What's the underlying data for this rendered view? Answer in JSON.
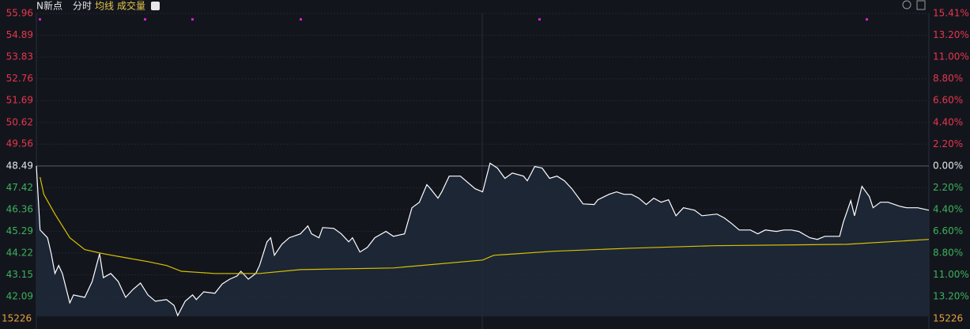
{
  "header": {
    "name": "N新点",
    "mode": "分时",
    "avg_toggle": "均线",
    "volume_toggle": "成交量"
  },
  "chart_data": {
    "type": "line",
    "xlim": [
      0,
      240
    ],
    "ylim": [
      41.12,
      55.96
    ],
    "yticks": [
      55.96,
      54.89,
      53.83,
      52.76,
      51.69,
      50.62,
      49.56,
      48.49,
      47.42,
      46.36,
      45.29,
      44.22,
      43.15,
      42.09
    ],
    "y2lim": [
      -15.2,
      15.41
    ],
    "y2ticks": [
      {
        "value": 15.41,
        "label": "15.41%"
      },
      {
        "value": 13.2,
        "label": "13.20%"
      },
      {
        "value": 11.0,
        "label": "11.00%"
      },
      {
        "value": 8.8,
        "label": "8.80%"
      },
      {
        "value": 6.6,
        "label": "6.60%"
      },
      {
        "value": 4.4,
        "label": "4.40%"
      },
      {
        "value": 2.2,
        "label": "2.20%"
      },
      {
        "value": 0,
        "label": "0.00%"
      },
      {
        "value": -2.2,
        "label": "2.20%"
      },
      {
        "value": -4.4,
        "label": "4.40%"
      },
      {
        "value": -6.6,
        "label": "6.60%"
      },
      {
        "value": -8.8,
        "label": "8.80%"
      },
      {
        "value": -11.0,
        "label": "11.00%"
      },
      {
        "value": -13.2,
        "label": "13.20%"
      }
    ],
    "grid": true,
    "volume_label": "15226",
    "series": [
      {
        "color": "#ffffff",
        "x": [
          0,
          1,
          3,
          4,
          5,
          6,
          7,
          9,
          10,
          13,
          15,
          17,
          18,
          20,
          22,
          24,
          26,
          28,
          30,
          32,
          35,
          37,
          38,
          40,
          42,
          43,
          45,
          48,
          50,
          52,
          54,
          55,
          57,
          59,
          60,
          62,
          63,
          64,
          66,
          68,
          71,
          73,
          74,
          76,
          77,
          80,
          82,
          84,
          85,
          87,
          89,
          91,
          94,
          96,
          99,
          101,
          103,
          105,
          106,
          108,
          109,
          111,
          114,
          116,
          118,
          120,
          122,
          124,
          126,
          128,
          131,
          132,
          134,
          136,
          138,
          140,
          142,
          144,
          147,
          150,
          151,
          154,
          156,
          158,
          160,
          162,
          164,
          166,
          168,
          170,
          172,
          174,
          177,
          179,
          183,
          185,
          187,
          189,
          192,
          194,
          196,
          199,
          201,
          203,
          205,
          208,
          210,
          212,
          216,
          217,
          219,
          220,
          222,
          224,
          225,
          227,
          229,
          232,
          234,
          237,
          240
        ],
        "values": [
          48.49,
          45.35,
          44.97,
          44.19,
          43.22,
          43.61,
          43.22,
          41.78,
          42.17,
          42.05,
          42.83,
          44.19,
          43.02,
          43.22,
          42.83,
          42.05,
          42.44,
          42.75,
          42.17,
          41.86,
          41.94,
          41.66,
          41.16,
          41.86,
          42.17,
          41.94,
          42.32,
          42.25,
          42.71,
          42.94,
          43.1,
          43.33,
          42.94,
          43.22,
          43.61,
          44.77,
          44.97,
          44.11,
          44.65,
          44.97,
          45.16,
          45.55,
          45.16,
          44.97,
          45.47,
          45.43,
          45.16,
          44.77,
          44.97,
          44.27,
          44.5,
          44.97,
          45.28,
          45.04,
          45.16,
          46.44,
          46.71,
          47.57,
          47.37,
          46.91,
          47.22,
          47.99,
          47.99,
          47.68,
          47.37,
          47.22,
          48.62,
          48.38,
          47.88,
          48.14,
          47.99,
          47.76,
          48.46,
          48.38,
          47.88,
          47.99,
          47.76,
          47.37,
          46.63,
          46.6,
          46.83,
          47.1,
          47.22,
          47.1,
          47.1,
          46.91,
          46.6,
          46.91,
          46.71,
          46.83,
          46.05,
          46.44,
          46.32,
          46.05,
          46.13,
          45.94,
          45.66,
          45.35,
          45.35,
          45.16,
          45.35,
          45.28,
          45.35,
          45.35,
          45.28,
          44.97,
          44.89,
          45.04,
          45.04,
          45.74,
          46.79,
          46.05,
          47.49,
          46.99,
          46.44,
          46.71,
          46.71,
          46.52,
          46.44,
          46.44,
          46.32
        ]
      },
      {
        "color": "#d8c200",
        "x": [
          1,
          2,
          5,
          9,
          13,
          18,
          24,
          30,
          35,
          39,
          48,
          60,
          71,
          96,
          120,
          123,
          139,
          160,
          182,
          218,
          240
        ],
        "values": [
          47.94,
          47.1,
          46.13,
          44.97,
          44.39,
          44.19,
          43.99,
          43.8,
          43.61,
          43.33,
          43.22,
          43.22,
          43.41,
          43.49,
          43.88,
          44.11,
          44.31,
          44.46,
          44.58,
          44.65,
          44.89
        ]
      }
    ]
  }
}
